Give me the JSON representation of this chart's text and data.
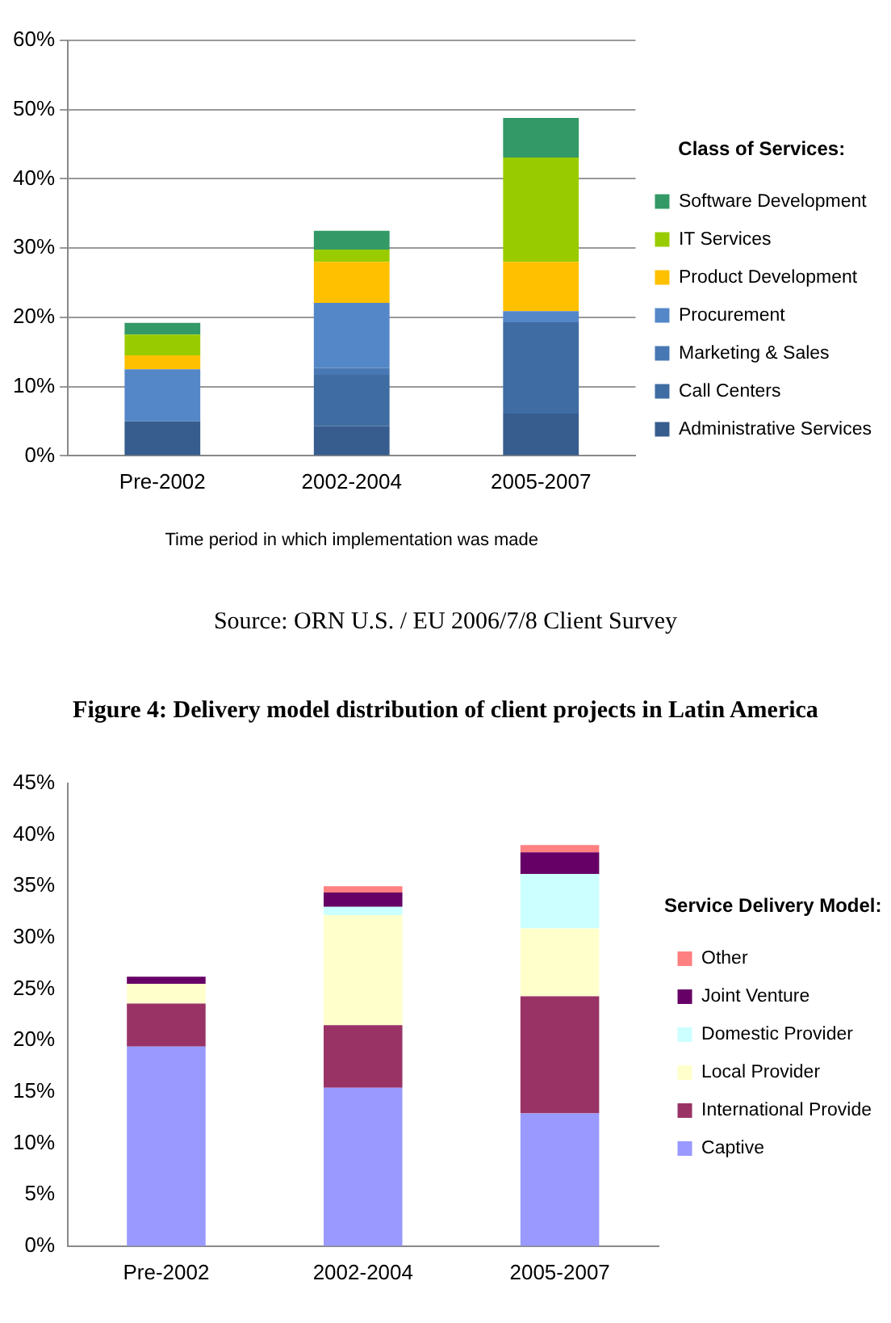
{
  "chart_data": [
    {
      "type": "bar",
      "stacked": true,
      "xlabel": "Time period in which implementation was made",
      "legend_title": "Class of Services:",
      "legend": "right",
      "grid": "y",
      "categories": [
        "Pre-2002",
        "2002-2004",
        "2005-2007"
      ],
      "ylim": [
        0,
        60
      ],
      "yticks": [
        {
          "value": 0,
          "label": "0%"
        },
        {
          "value": 10,
          "label": "10%"
        },
        {
          "value": 20,
          "label": "20%"
        },
        {
          "value": 30,
          "label": "30%"
        },
        {
          "value": 40,
          "label": "40%"
        },
        {
          "value": 50,
          "label": "50%"
        },
        {
          "value": 60,
          "label": "60%"
        }
      ],
      "series": [
        {
          "name": "Administrative Services",
          "color": "#375d8f",
          "values": [
            5,
            4.3,
            6.1
          ]
        },
        {
          "name": "Call Centers",
          "color": "#3f6ca3",
          "values": [
            0,
            7.4,
            13.2
          ]
        },
        {
          "name": "Marketing & Sales",
          "color": "#4878b3",
          "values": [
            0,
            1,
            0
          ]
        },
        {
          "name": "Procurement",
          "color": "#5387c8",
          "values": [
            7.5,
            9.4,
            1.6
          ]
        },
        {
          "name": "Product Development",
          "color": "#ffc000",
          "values": [
            2,
            5.9,
            7.1
          ]
        },
        {
          "name": "IT Services",
          "color": "#99cc00",
          "values": [
            3,
            1.8,
            15.1
          ]
        },
        {
          "name": "Software Development",
          "color": "#339966",
          "values": [
            1.7,
            2.7,
            5.7
          ]
        }
      ],
      "annotations": [
        "Source: ORN U.S. / EU 2006/7/8 Client Survey"
      ]
    },
    {
      "type": "bar",
      "stacked": true,
      "title": "Figure 4: Delivery model distribution of client projects in Latin America",
      "legend_title": "Service Delivery Model:",
      "legend": "right",
      "categories": [
        "Pre-2002",
        "2002-2004",
        "2005-2007"
      ],
      "ylim": [
        0,
        45
      ],
      "yticks": [
        {
          "value": 0,
          "label": "0%"
        },
        {
          "value": 5,
          "label": "5%"
        },
        {
          "value": 10,
          "label": "10%"
        },
        {
          "value": 15,
          "label": "15%"
        },
        {
          "value": 20,
          "label": "20%"
        },
        {
          "value": 25,
          "label": "25%"
        },
        {
          "value": 30,
          "label": "30%"
        },
        {
          "value": 35,
          "label": "35%"
        },
        {
          "value": 40,
          "label": "40%"
        },
        {
          "value": 45,
          "label": "45%"
        }
      ],
      "series": [
        {
          "name": "Captive",
          "color": "#9999ff",
          "values": [
            19.4,
            15.4,
            12.9
          ]
        },
        {
          "name": "International Provide",
          "color": "#993366",
          "values": [
            4.2,
            6.1,
            11.4
          ]
        },
        {
          "name": "Local Provider",
          "color": "#ffffcc",
          "values": [
            1.9,
            10.7,
            6.6
          ]
        },
        {
          "name": "Domestic Provider",
          "color": "#ccffff",
          "values": [
            0,
            0.8,
            5.3
          ]
        },
        {
          "name": "Joint Venture",
          "color": "#660066",
          "values": [
            0.7,
            1.4,
            2.1
          ]
        },
        {
          "name": "Other",
          "color": "#ff8080",
          "values": [
            0,
            0.6,
            0.7
          ]
        }
      ]
    }
  ]
}
